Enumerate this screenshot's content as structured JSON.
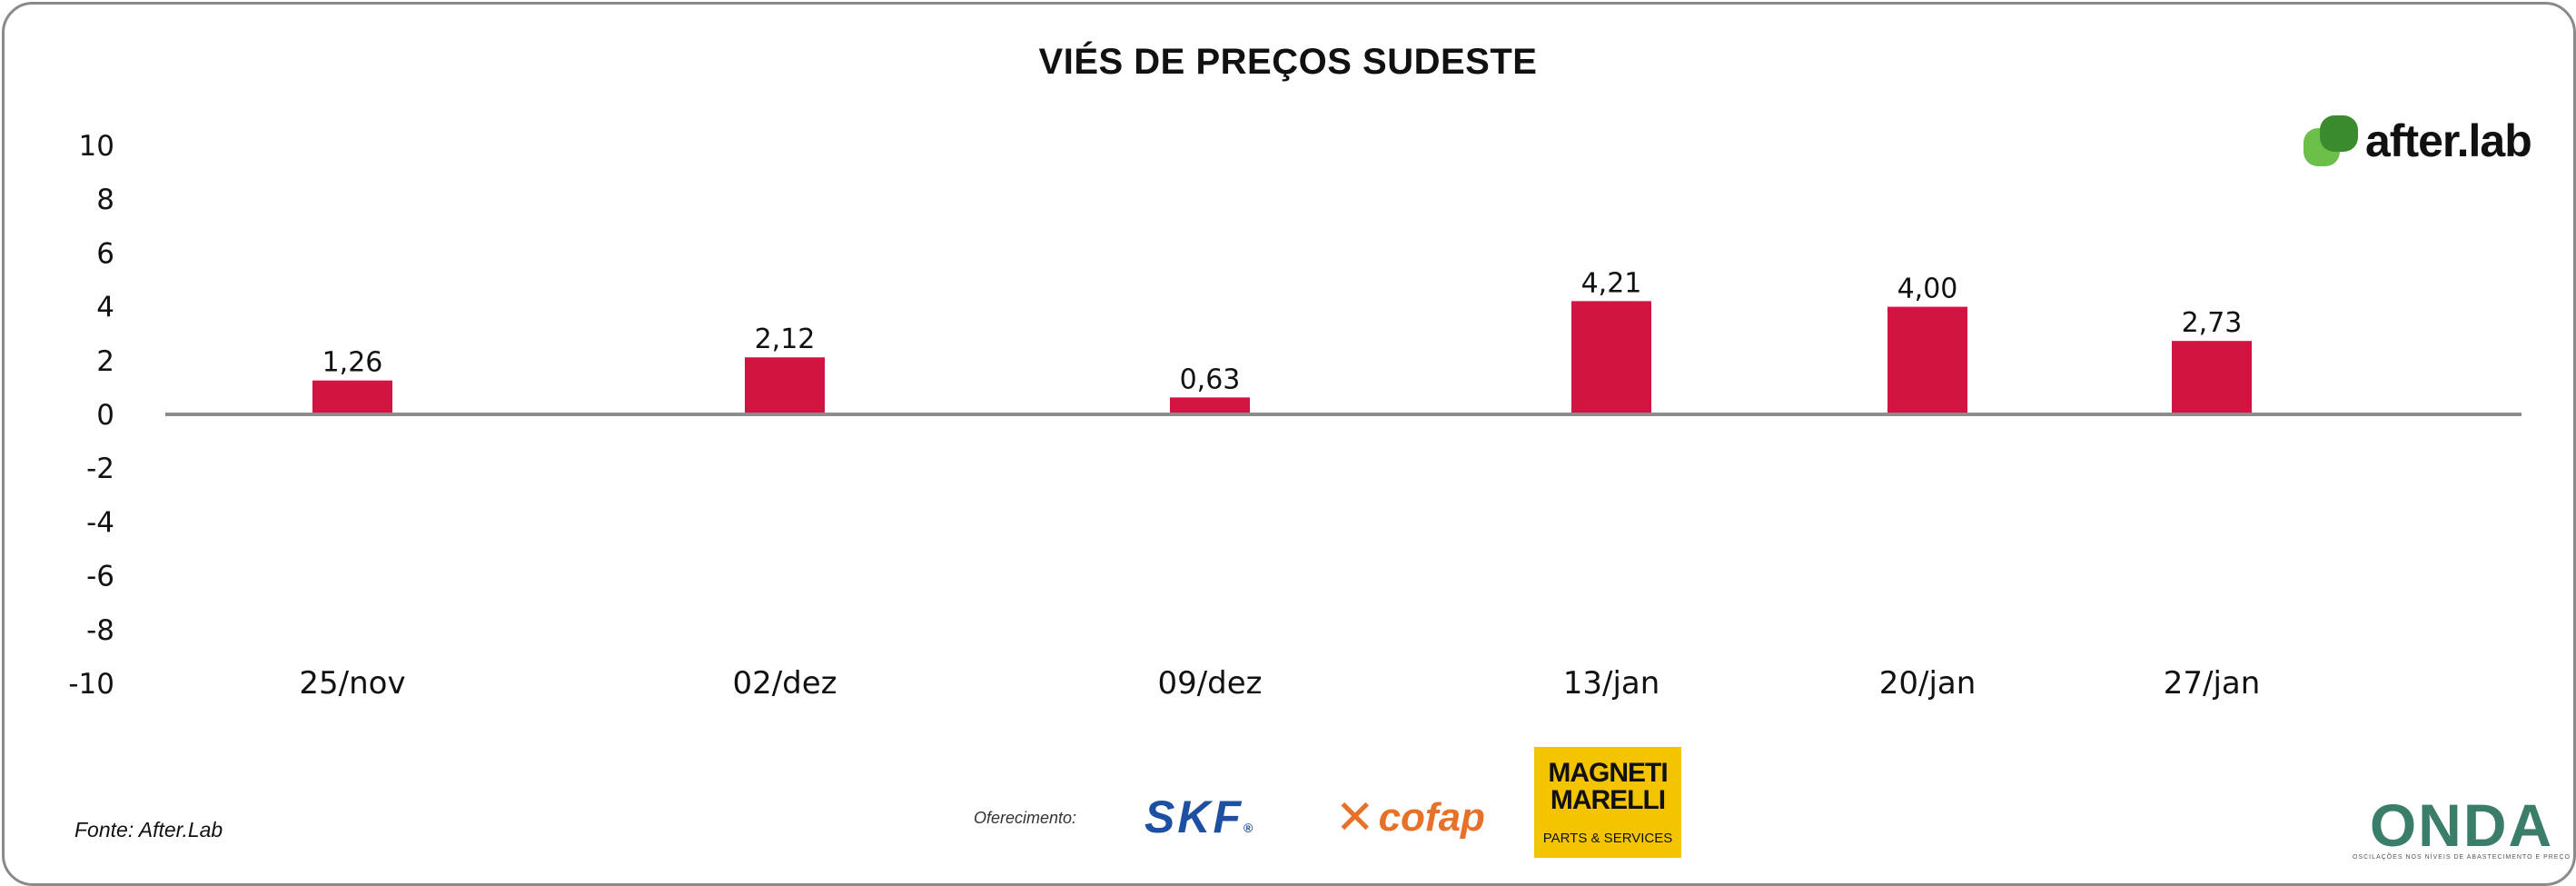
{
  "title": "VIÉS DE PREÇOS SUDESTE",
  "source": "Fonte: After.Lab",
  "sponsor_label": "Oferecimento:",
  "logos": {
    "afterlab": "after.lab",
    "skf": "SKF",
    "cofap": "cofap",
    "magneti_top": "MAGNETI MARELLI",
    "magneti_bottom": "PARTS & SERVICES",
    "onda": "ONDA",
    "onda_tagline": "OSCILAÇÕES NOS NÍVEIS DE ABASTECIMENTO E PREÇO"
  },
  "colors": {
    "bar": "#d21442",
    "axis": "#8c8c8c",
    "afterlab_green": "#6cc04a",
    "afterlab_dark": "#3a8a2e"
  },
  "chart_data": {
    "type": "bar",
    "title": "VIÉS DE PREÇOS SUDESTE",
    "categories": [
      "25/nov",
      "02/dez",
      "09/dez",
      "13/jan",
      "20/jan",
      "27/jan"
    ],
    "values": [
      1.26,
      2.12,
      0.63,
      4.21,
      4.0,
      2.73
    ],
    "data_labels": [
      "1,26",
      "2,12",
      "0,63",
      "4,21",
      "4,00",
      "2,73"
    ],
    "yticks": [
      "10",
      "8",
      "6",
      "4",
      "2",
      "0",
      "-2",
      "-4",
      "-6",
      "-8",
      "-10"
    ],
    "ylim": [
      -10,
      10
    ],
    "grid": false,
    "legend": "none"
  }
}
